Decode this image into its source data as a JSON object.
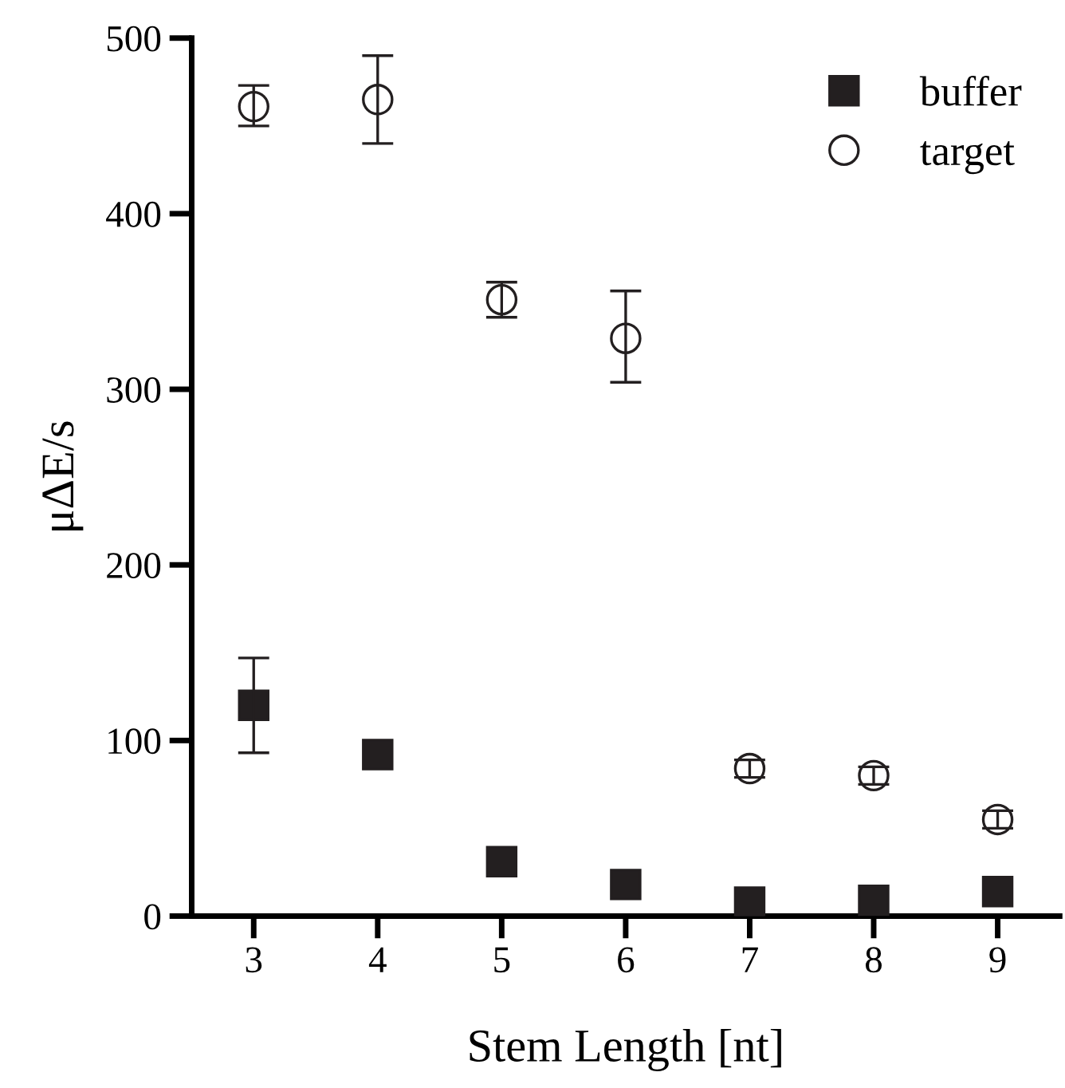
{
  "chart_data": {
    "type": "scatter",
    "xlabel": "Stem Length [nt]",
    "ylabel": "μΔE/s",
    "x": [
      3,
      4,
      5,
      6,
      7,
      8,
      9
    ],
    "xlim": [
      2.5,
      9.5
    ],
    "xticks": [
      3,
      4,
      5,
      6,
      7,
      8,
      9
    ],
    "ylim": [
      0,
      500
    ],
    "yticks": [
      0,
      100,
      200,
      300,
      400,
      500
    ],
    "grid": false,
    "legend": "top right",
    "series": [
      {
        "name": "buffer",
        "color": "#231f20",
        "marker": "square",
        "values": [
          120,
          92,
          31,
          18,
          8,
          9,
          14
        ],
        "errors": [
          27,
          null,
          null,
          null,
          null,
          null,
          null
        ]
      },
      {
        "name": "target",
        "color": "#231f20",
        "marker": "circle",
        "values": [
          461,
          465,
          351,
          329,
          84,
          80,
          55
        ],
        "errors": [
          [
            450,
            473
          ],
          [
            440,
            490
          ],
          [
            341,
            361
          ],
          [
            304,
            356
          ],
          5,
          5,
          5
        ]
      }
    ]
  }
}
